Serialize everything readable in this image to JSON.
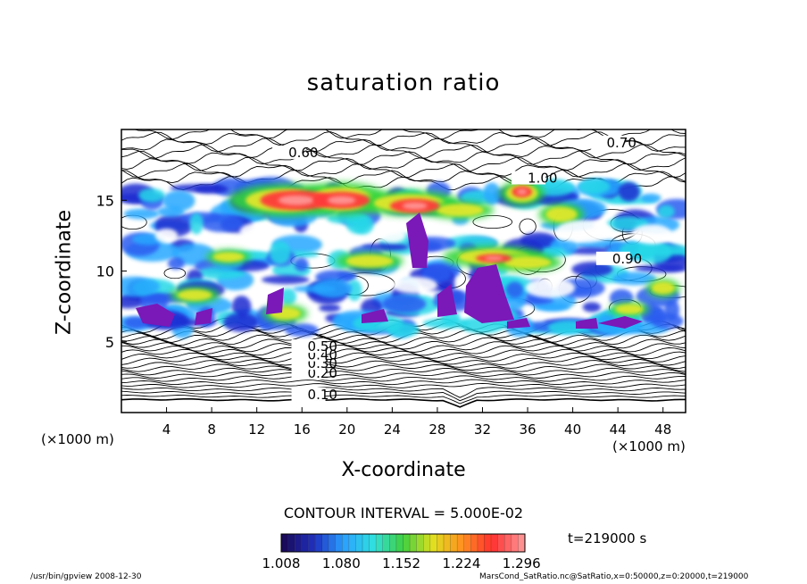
{
  "chart_data": {
    "type": "heatmap",
    "title": "saturation ratio",
    "xlabel": "X-coordinate",
    "ylabel": "Z-coordinate",
    "x_unit": "(×1000 m)",
    "xlim": [
      0,
      50
    ],
    "ylim": [
      0,
      20
    ],
    "x_ticks": [
      4,
      8,
      12,
      16,
      20,
      24,
      28,
      32,
      36,
      40,
      44,
      48
    ],
    "y_ticks": [
      5,
      10,
      15
    ],
    "contour_interval_text": "CONTOUR INTERVAL = 5.000E-02",
    "colorbar": {
      "min": 1.008,
      "max": 1.3,
      "labels": [
        "1.008",
        "1.080",
        "1.152",
        "1.224",
        "1.296"
      ],
      "colors": [
        "#1a0a5a",
        "#2030c0",
        "#2aa0ff",
        "#30e0e0",
        "#40d040",
        "#e0e020",
        "#ff9020",
        "#ff3030",
        "#ff9090"
      ]
    },
    "contour_labels": [
      "0.10",
      "0.20",
      "0.30",
      "0.40",
      "0.50",
      "0.60",
      "0.70",
      "0.90",
      "1.00"
    ],
    "colors": {
      "supersat_max": "#7a18b8"
    },
    "time_label": "t=219000 s"
  },
  "footer": {
    "left": "/usr/bin/gpview  2008-12-30",
    "right": "MarsCond_SatRatio.nc@SatRatio,x=0:50000,z=0:20000,t=219000"
  }
}
